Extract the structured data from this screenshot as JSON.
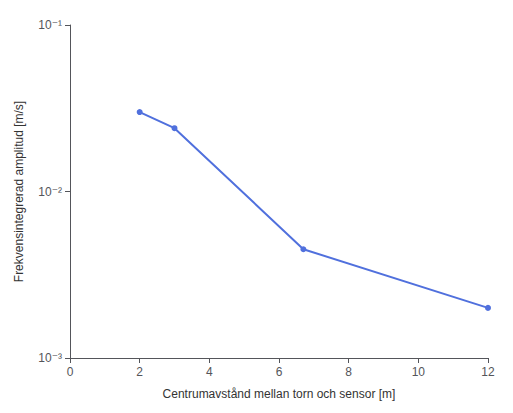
{
  "chart_data": {
    "type": "line",
    "x": [
      2.0,
      3.0,
      6.7,
      12.0
    ],
    "values": [
      0.03,
      0.024,
      0.0045,
      0.002
    ],
    "xlabel": "Centrumavstånd mellan torn och sensor [m]",
    "ylabel": "Frekvensintegrerad amplitud [m/s]",
    "xlim": [
      0,
      12
    ],
    "ylim": [
      0.001,
      0.1
    ],
    "xticks": [
      0,
      2,
      4,
      6,
      8,
      10,
      12
    ],
    "yticks": [
      {
        "value": 0.001,
        "label": "10⁻³"
      },
      {
        "value": 0.01,
        "label": "10⁻²"
      },
      {
        "value": 0.1,
        "label": "10⁻¹"
      }
    ],
    "log": "y",
    "grid": false,
    "marker": "circle"
  }
}
